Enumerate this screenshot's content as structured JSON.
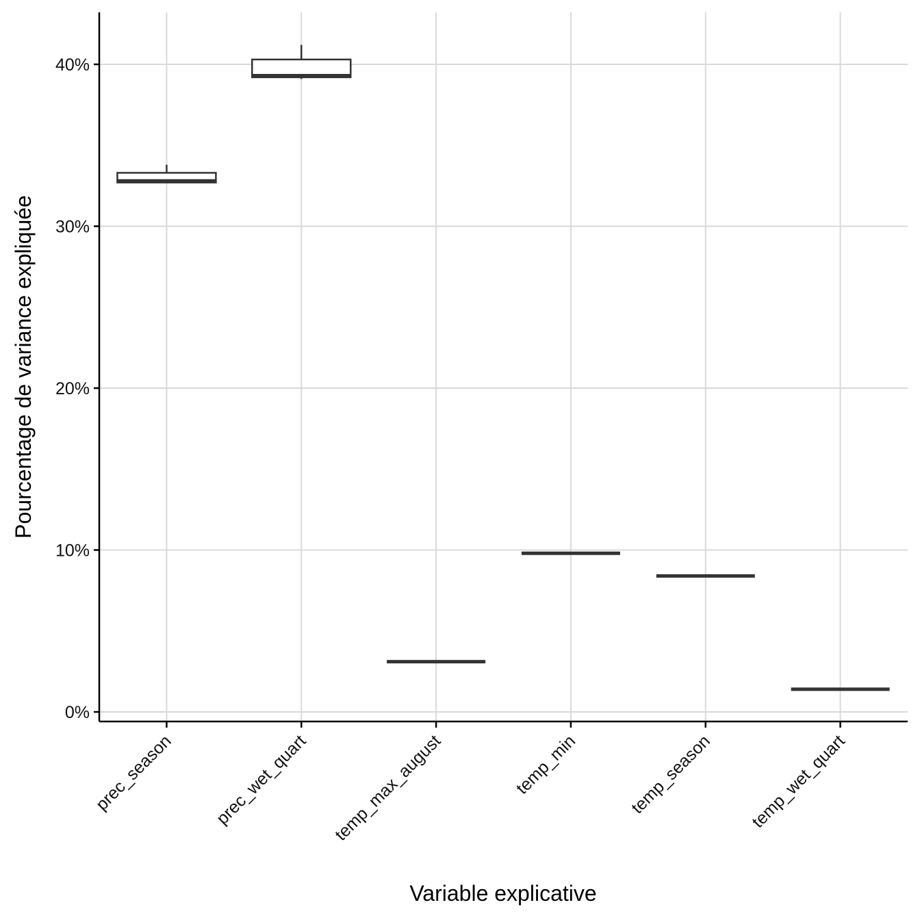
{
  "chart_data": {
    "type": "boxplot",
    "xlabel": "Variable explicative",
    "ylabel": "Pourcentage de variance expliquée",
    "categories": [
      "prec_season",
      "prec_wet_quart",
      "temp_max_august",
      "temp_min",
      "temp_season",
      "temp_wet_quart"
    ],
    "ylim": [
      -0.5,
      43.2
    ],
    "yticks": [
      0,
      10,
      20,
      30,
      40
    ],
    "ytick_labels": [
      "0%",
      "10%",
      "20%",
      "30%",
      "40%"
    ],
    "grid": true,
    "legend": "none",
    "boxes": [
      {
        "category": "prec_season",
        "whisker_low": 32.7,
        "q1": 32.7,
        "median": 32.8,
        "q3": 33.3,
        "whisker_high": 33.8
      },
      {
        "category": "prec_wet_quart",
        "whisker_low": 39.1,
        "q1": 39.2,
        "median": 39.3,
        "q3": 40.3,
        "whisker_high": 41.2
      },
      {
        "category": "temp_max_august",
        "whisker_low": 3.1,
        "q1": 3.1,
        "median": 3.1,
        "q3": 3.1,
        "whisker_high": 3.1
      },
      {
        "category": "temp_min",
        "whisker_low": 9.8,
        "q1": 9.8,
        "median": 9.8,
        "q3": 9.8,
        "whisker_high": 9.8
      },
      {
        "category": "temp_season",
        "whisker_low": 8.4,
        "q1": 8.4,
        "median": 8.4,
        "q3": 8.4,
        "whisker_high": 8.4
      },
      {
        "category": "temp_wet_quart",
        "whisker_low": 1.4,
        "q1": 1.4,
        "median": 1.4,
        "q3": 1.4,
        "whisker_high": 1.4
      }
    ]
  }
}
